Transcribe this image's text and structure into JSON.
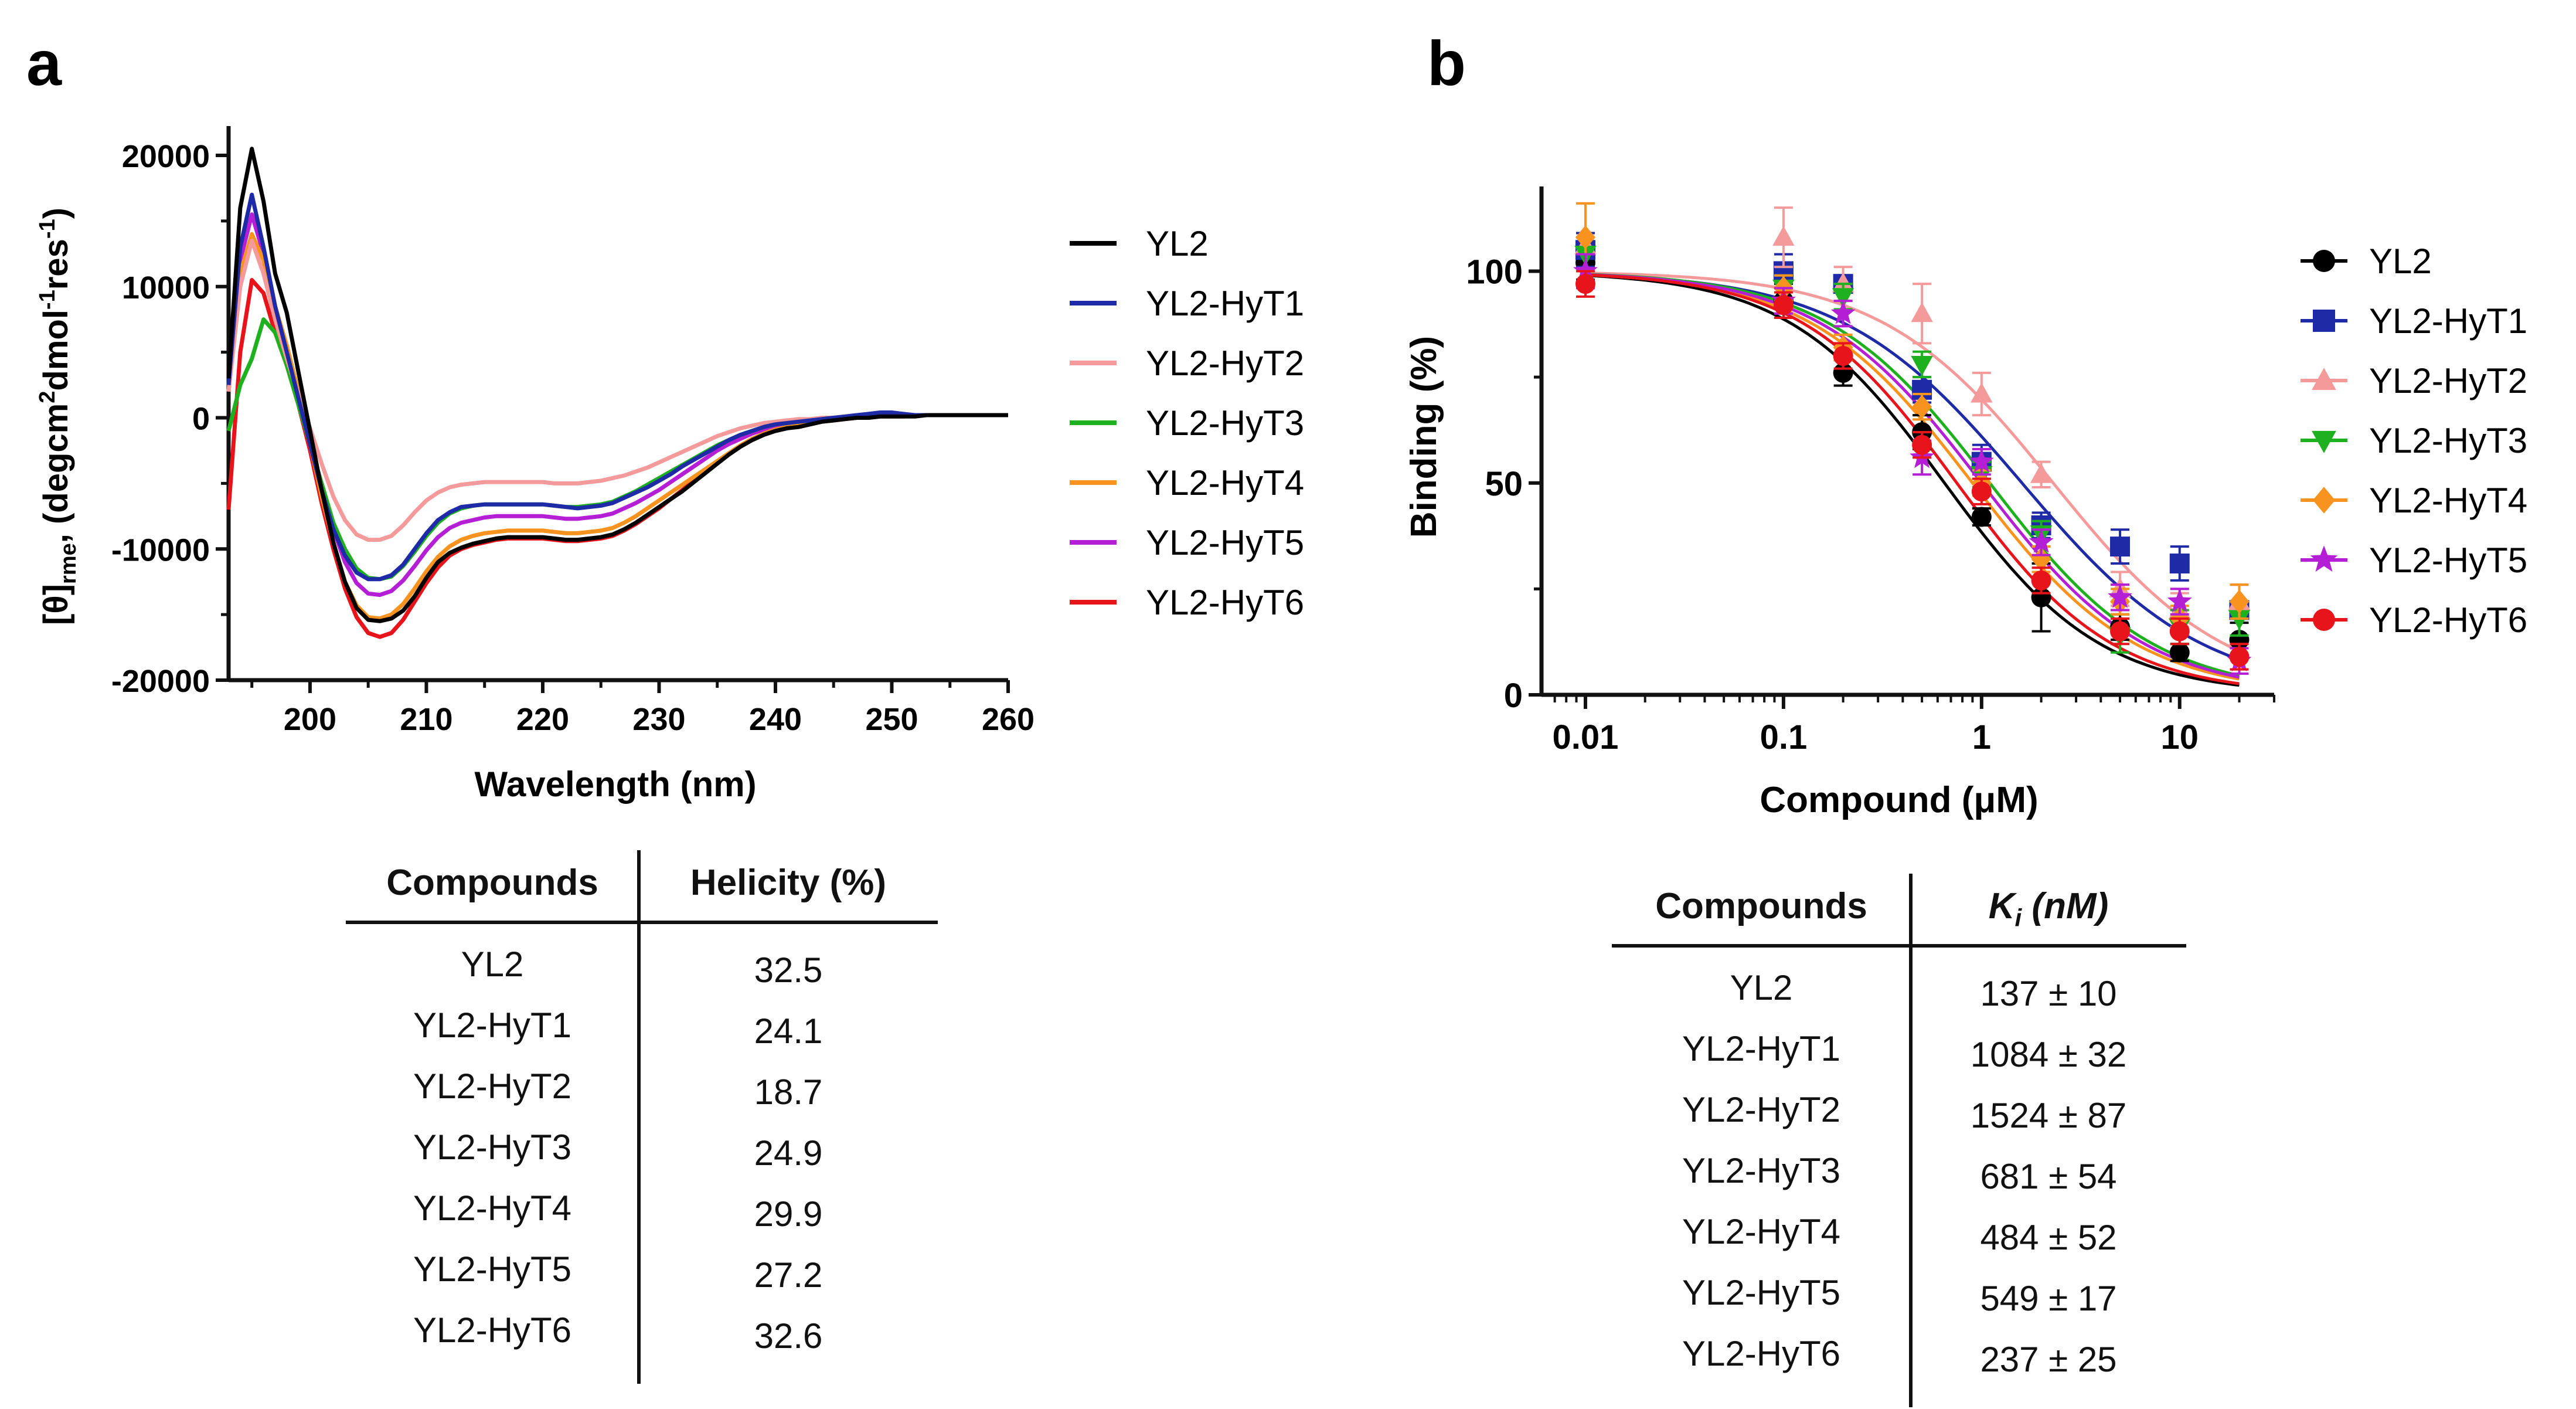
{
  "panel_a": {
    "label": "a",
    "legend": [
      "YL2",
      "YL2-HyT1",
      "YL2-HyT2",
      "YL2-HyT3",
      "YL2-HyT4",
      "YL2-HyT5",
      "YL2-HyT6"
    ],
    "table": {
      "col1": "Compounds",
      "col2": "Helicity (%)",
      "rows": [
        {
          "name": "YL2",
          "value": "32.5"
        },
        {
          "name": "YL2-HyT1",
          "value": "24.1"
        },
        {
          "name": "YL2-HyT2",
          "value": "18.7"
        },
        {
          "name": "YL2-HyT3",
          "value": "24.9"
        },
        {
          "name": "YL2-HyT4",
          "value": "29.9"
        },
        {
          "name": "YL2-HyT5",
          "value": "27.2"
        },
        {
          "name": "YL2-HyT6",
          "value": "32.6"
        }
      ]
    }
  },
  "panel_b": {
    "label": "b",
    "legend": [
      "YL2",
      "YL2-HyT1",
      "YL2-HyT2",
      "YL2-HyT3",
      "YL2-HyT4",
      "YL2-HyT5",
      "YL2-HyT6"
    ],
    "table": {
      "col1": "Compounds",
      "col2_main": "K",
      "col2_sub": "i",
      "col2_unit": " (nM)",
      "rows": [
        {
          "name": "YL2",
          "value": "137 ± 10"
        },
        {
          "name": "YL2-HyT1",
          "value": "1084 ± 32"
        },
        {
          "name": "YL2-HyT2",
          "value": "1524 ± 87"
        },
        {
          "name": "YL2-HyT3",
          "value": "681 ± 54"
        },
        {
          "name": "YL2-HyT4",
          "value": "484 ± 52"
        },
        {
          "name": "YL2-HyT5",
          "value": "549 ± 17"
        },
        {
          "name": "YL2-HyT6",
          "value": "237 ± 25"
        }
      ]
    }
  },
  "chart_data": [
    {
      "type": "line",
      "title": "",
      "xlabel": "Wavelength (nm)",
      "ylabel_main": "[θ]",
      "ylabel_sub": "rme",
      "ylabel_rest1": ", (degcm",
      "ylabel_sup1": "2",
      "ylabel_rest2": "dmol",
      "ylabel_sup2": "-1",
      "ylabel_rest3": "res",
      "ylabel_sup3": "-1",
      "ylabel_end": ")",
      "xlim": [
        193,
        260
      ],
      "ylim": [
        -20000,
        20000
      ],
      "xticks": [
        200,
        210,
        220,
        230,
        240,
        250,
        260
      ],
      "yticks": [
        -20000,
        -10000,
        0,
        10000,
        20000
      ],
      "xtick_labels": [
        "200",
        "210",
        "220",
        "230",
        "240",
        "250",
        "260"
      ],
      "ytick_labels": [
        "-20000",
        "-10000",
        "0",
        "10000",
        "20000"
      ],
      "x": [
        193,
        194,
        195,
        196,
        197,
        198,
        199,
        200,
        201,
        202,
        203,
        204,
        205,
        206,
        207,
        208,
        209,
        210,
        211,
        212,
        213,
        214,
        215,
        216,
        217,
        218,
        219,
        220,
        221,
        222,
        223,
        224,
        225,
        226,
        227,
        228,
        229,
        230,
        231,
        232,
        233,
        234,
        235,
        236,
        237,
        238,
        239,
        240,
        241,
        242,
        243,
        244,
        245,
        246,
        247,
        248,
        249,
        250,
        251,
        252,
        253,
        254,
        255,
        256,
        257,
        258,
        259,
        260
      ],
      "series": [
        {
          "name": "YL2",
          "color": "#000000",
          "values": [
            3000,
            16000,
            20500,
            16500,
            11000,
            8000,
            3500,
            -1000,
            -5500,
            -9500,
            -12500,
            -14500,
            -15400,
            -15500,
            -15300,
            -14700,
            -13600,
            -12200,
            -11000,
            -10300,
            -9900,
            -9600,
            -9400,
            -9200,
            -9100,
            -9100,
            -9100,
            -9100,
            -9200,
            -9300,
            -9300,
            -9200,
            -9100,
            -8900,
            -8500,
            -8000,
            -7400,
            -6800,
            -6200,
            -5600,
            -4900,
            -4200,
            -3500,
            -2800,
            -2200,
            -1700,
            -1300,
            -1000,
            -800,
            -700,
            -500,
            -300,
            -200,
            -100,
            0,
            0,
            100,
            100,
            100,
            100,
            200,
            200,
            200,
            200,
            200,
            200,
            200,
            200
          ]
        },
        {
          "name": "YL2-HyT1",
          "color": "#1f2aa6",
          "values": [
            2500,
            13000,
            17000,
            13000,
            8500,
            5000,
            1500,
            -2000,
            -5500,
            -8500,
            -10500,
            -11800,
            -12300,
            -12300,
            -12000,
            -11200,
            -10000,
            -8800,
            -7800,
            -7200,
            -6800,
            -6700,
            -6600,
            -6600,
            -6600,
            -6600,
            -6600,
            -6600,
            -6700,
            -6800,
            -6900,
            -6800,
            -6700,
            -6500,
            -6100,
            -5700,
            -5300,
            -4800,
            -4300,
            -3700,
            -3200,
            -2700,
            -2200,
            -1700,
            -1300,
            -1000,
            -700,
            -500,
            -400,
            -300,
            -200,
            -100,
            0,
            100,
            200,
            300,
            400,
            400,
            300,
            200,
            200,
            200,
            200,
            200,
            200,
            200,
            200,
            200
          ]
        },
        {
          "name": "YL2-HyT2",
          "color": "#f59a9a",
          "values": [
            2000,
            10000,
            13500,
            11000,
            7500,
            4500,
            1800,
            -800,
            -3500,
            -6000,
            -7800,
            -8900,
            -9300,
            -9300,
            -9000,
            -8200,
            -7200,
            -6300,
            -5700,
            -5300,
            -5100,
            -5000,
            -4900,
            -4900,
            -4900,
            -4900,
            -4900,
            -4900,
            -5000,
            -5000,
            -5000,
            -4900,
            -4800,
            -4600,
            -4400,
            -4100,
            -3800,
            -3400,
            -3000,
            -2600,
            -2200,
            -1800,
            -1400,
            -1100,
            -800,
            -600,
            -400,
            -300,
            -200,
            -100,
            -100,
            0,
            0,
            100,
            100,
            100,
            200,
            200,
            200,
            200,
            200,
            200,
            200,
            200,
            200,
            200,
            200,
            200
          ]
        },
        {
          "name": "YL2-HyT3",
          "color": "#1fb01f",
          "values": [
            -1000,
            2500,
            4500,
            7500,
            6500,
            4000,
            1000,
            -2000,
            -5000,
            -8000,
            -10000,
            -11500,
            -12200,
            -12300,
            -12100,
            -11300,
            -10200,
            -9000,
            -8000,
            -7300,
            -6900,
            -6700,
            -6600,
            -6600,
            -6600,
            -6600,
            -6600,
            -6600,
            -6700,
            -6800,
            -6800,
            -6700,
            -6600,
            -6400,
            -6000,
            -5600,
            -5100,
            -4600,
            -4100,
            -3600,
            -3100,
            -2600,
            -2100,
            -1700,
            -1300,
            -1000,
            -700,
            -500,
            -400,
            -300,
            -200,
            -100,
            0,
            100,
            200,
            200,
            200,
            200,
            200,
            200,
            200,
            200,
            200,
            200,
            200,
            200,
            200,
            200
          ]
        },
        {
          "name": "YL2-HyT4",
          "color": "#f7931e",
          "values": [
            2000,
            11000,
            14000,
            12000,
            8500,
            5500,
            2000,
            -2000,
            -6000,
            -9500,
            -12500,
            -14300,
            -15200,
            -15300,
            -15000,
            -14200,
            -13000,
            -11700,
            -10600,
            -9800,
            -9300,
            -9000,
            -8800,
            -8700,
            -8600,
            -8600,
            -8600,
            -8600,
            -8700,
            -8800,
            -8800,
            -8700,
            -8600,
            -8400,
            -8000,
            -7500,
            -6900,
            -6300,
            -5700,
            -5100,
            -4500,
            -3900,
            -3300,
            -2700,
            -2100,
            -1600,
            -1200,
            -900,
            -700,
            -500,
            -400,
            -300,
            -200,
            -100,
            0,
            100,
            100,
            100,
            200,
            200,
            200,
            200,
            200,
            200,
            200,
            200,
            200,
            200
          ]
        },
        {
          "name": "YL2-HyT5",
          "color": "#b41fd6",
          "values": [
            2000,
            12000,
            15500,
            12500,
            8500,
            5000,
            1500,
            -2000,
            -5500,
            -8500,
            -11000,
            -12600,
            -13400,
            -13500,
            -13200,
            -12400,
            -11300,
            -10100,
            -9100,
            -8400,
            -8000,
            -7800,
            -7600,
            -7500,
            -7500,
            -7500,
            -7500,
            -7500,
            -7600,
            -7700,
            -7700,
            -7600,
            -7500,
            -7300,
            -6900,
            -6500,
            -6000,
            -5500,
            -4900,
            -4300,
            -3700,
            -3100,
            -2500,
            -2000,
            -1600,
            -1200,
            -900,
            -700,
            -500,
            -400,
            -300,
            -200,
            -100,
            0,
            100,
            100,
            200,
            200,
            200,
            200,
            200,
            200,
            200,
            200,
            200,
            200,
            200,
            200
          ]
        },
        {
          "name": "YL2-HyT6",
          "color": "#e8141c",
          "values": [
            -7000,
            5000,
            10500,
            9500,
            6500,
            4000,
            1000,
            -2500,
            -6500,
            -10000,
            -13000,
            -15200,
            -16400,
            -16700,
            -16400,
            -15400,
            -14000,
            -12600,
            -11400,
            -10500,
            -10000,
            -9700,
            -9500,
            -9300,
            -9200,
            -9200,
            -9200,
            -9200,
            -9300,
            -9400,
            -9400,
            -9300,
            -9200,
            -9000,
            -8600,
            -8100,
            -7500,
            -6900,
            -6200,
            -5500,
            -4800,
            -4100,
            -3400,
            -2800,
            -2200,
            -1700,
            -1300,
            -1000,
            -800,
            -600,
            -400,
            -300,
            -200,
            -100,
            0,
            0,
            100,
            100,
            100,
            200,
            200,
            200,
            200,
            200,
            200,
            200,
            200,
            200
          ]
        }
      ]
    },
    {
      "type": "scatter",
      "title": "",
      "xlabel": "Compound (μM)",
      "ylabel": "Binding (%)",
      "xscale": "log",
      "xlim": [
        0.006,
        30
      ],
      "ylim": [
        0,
        120
      ],
      "xticks": [
        0.01,
        0.1,
        1,
        10
      ],
      "xtick_labels": [
        "0.01",
        "0.1",
        "1",
        "10"
      ],
      "yticks": [
        0,
        50,
        100
      ],
      "ytick_labels": [
        "0",
        "50",
        "100"
      ],
      "x": [
        0.01,
        0.1,
        0.2,
        0.5,
        1,
        2,
        5,
        10,
        20
      ],
      "series": [
        {
          "name": "YL2",
          "color": "#000000",
          "marker": "circle",
          "ic50": 0.65,
          "hill": 1.1,
          "values": [
            102,
            93,
            76,
            62,
            42,
            23,
            16,
            10,
            13
          ],
          "errors": [
            4,
            4,
            3,
            4,
            2,
            8,
            3,
            2,
            4
          ]
        },
        {
          "name": "YL2-HyT1",
          "color": "#1f2aa6",
          "marker": "square",
          "ic50": 1.6,
          "hill": 0.95,
          "values": [
            105,
            100,
            97,
            72,
            55,
            40,
            35,
            31,
            20
          ],
          "errors": [
            4,
            4,
            2,
            3,
            4,
            3,
            4,
            4,
            6
          ]
        },
        {
          "name": "YL2-HyT2",
          "color": "#f59a9a",
          "marker": "triangle-up",
          "ic50": 2.3,
          "hill": 1.0,
          "values": [
            106,
            108,
            97,
            90,
            71,
            52,
            25,
            20,
            22
          ],
          "errors": [
            10,
            7,
            4,
            7,
            5,
            3,
            4,
            4,
            4
          ]
        },
        {
          "name": "YL2-HyT3",
          "color": "#1fb01f",
          "marker": "triangle-down",
          "ic50": 1.1,
          "hill": 1.05,
          "values": [
            104,
            96,
            94,
            78,
            52,
            38,
            14,
            16,
            18
          ],
          "errors": [
            4,
            3,
            3,
            3,
            3,
            3,
            4,
            4,
            4
          ]
        },
        {
          "name": "YL2-HyT4",
          "color": "#f7931e",
          "marker": "diamond",
          "ic50": 0.9,
          "hill": 1.05,
          "values": [
            108,
            96,
            82,
            68,
            50,
            32,
            22,
            18,
            22
          ],
          "errors": [
            8,
            3,
            3,
            3,
            3,
            3,
            3,
            3,
            4
          ]
        },
        {
          "name": "YL2-HyT5",
          "color": "#b41fd6",
          "marker": "star",
          "ic50": 1.0,
          "hill": 1.05,
          "values": [
            100,
            93,
            90,
            56,
            55,
            36,
            23,
            22,
            8
          ],
          "errors": [
            4,
            3,
            3,
            4,
            3,
            3,
            3,
            3,
            3
          ]
        },
        {
          "name": "YL2-HyT6",
          "color": "#e8141c",
          "marker": "circle",
          "ic50": 0.75,
          "hill": 1.1,
          "values": [
            97,
            92,
            80,
            59,
            48,
            27,
            15,
            15,
            9
          ],
          "errors": [
            3,
            3,
            3,
            3,
            3,
            3,
            3,
            3,
            3
          ]
        }
      ]
    }
  ]
}
